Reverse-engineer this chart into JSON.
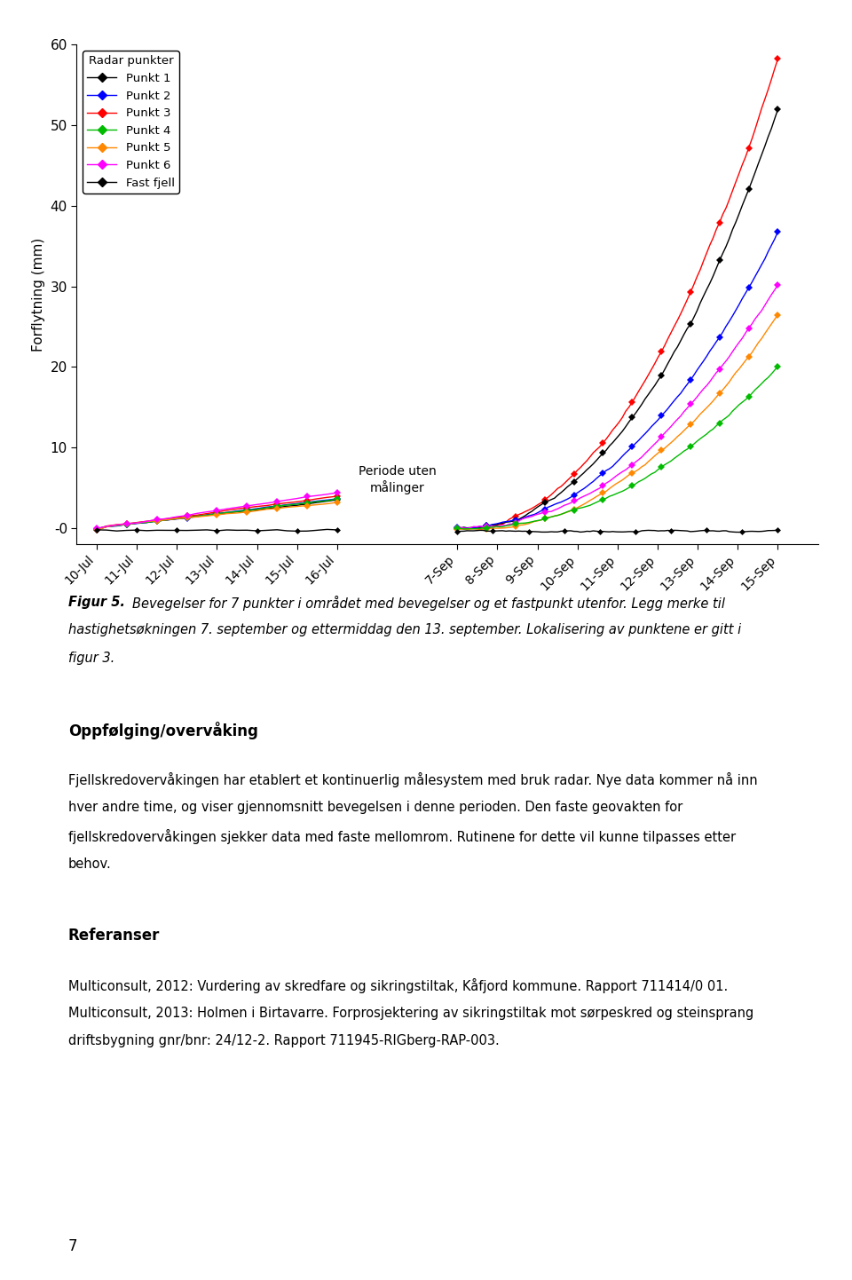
{
  "title": "",
  "ylabel": "Forflytning (mm)",
  "ylim": [
    -2,
    60
  ],
  "yticks": [
    0,
    10,
    20,
    30,
    40,
    50,
    60
  ],
  "ytick_labels": [
    "-0",
    "10",
    "20",
    "30",
    "40",
    "50",
    "60"
  ],
  "legend_title": "Radar punkter",
  "series": [
    {
      "name": "Punkt 1",
      "color": "#000000"
    },
    {
      "name": "Punkt 2",
      "color": "#0000ff"
    },
    {
      "name": "Punkt 3",
      "color": "#ff0000"
    },
    {
      "name": "Punkt 4",
      "color": "#00bb00"
    },
    {
      "name": "Punkt 5",
      "color": "#ff8800"
    },
    {
      "name": "Punkt 6",
      "color": "#ff00ff"
    },
    {
      "name": "Fast fjell",
      "color": "#000000"
    }
  ],
  "jul_xticks": [
    "10-Jul",
    "11-Jul",
    "12-Jul",
    "13-Jul",
    "14-Jul",
    "15-Jul",
    "16-Jul"
  ],
  "sep_xticks": [
    "7-Sep",
    "8-Sep",
    "9-Sep",
    "10-Sep",
    "11-Sep",
    "12-Sep",
    "13-Sep",
    "14-Sep",
    "15-Sep"
  ],
  "periode_label": "Periode uten\nmålinger",
  "background_color": "#ffffff",
  "caption_bold": "Figur 5.",
  "caption_italic": " Bevegelser for 7 punkter i området med bevegelser og et fastpunkt utenfor. Legg merke til hastighetsøkningen 7. september og ettermiddag den 13. september. Lokalisering av punktene er gitt i figur 3.",
  "section_heading": "Oppfølging/overvåking",
  "body_text_line1": "Fjellskredovervåkingen har etablert et kontinuerlig målesystem med bruk radar. Nye data kommer nå inn",
  "body_text_line2": "hver andre time, og viser gjennomsnitt bevegelsen i denne perioden. Den faste geovakten for",
  "body_text_line3": "fjellskredovervåkingen sjekker data med faste mellomrom. Rutinene for dette vil kunne tilpasses etter",
  "body_text_line4": "behov.",
  "ref_heading": "Referanser",
  "ref_text1": "Multiconsult, 2012: Vurdering av skredfare og sikringstiltak, Kåfjord kommune. Rapport 711414/0 01.",
  "ref_text2a": "Multiconsult, 2013: Holmen i Birtavarre. Forprosjektering av sikringstiltak mot sørpeskred og steinsprang",
  "ref_text2b": "driftsbygning gnr/bnr: 24/12-2. Rapport 711945-RIGberg-RAP-003.",
  "page_number": "7"
}
